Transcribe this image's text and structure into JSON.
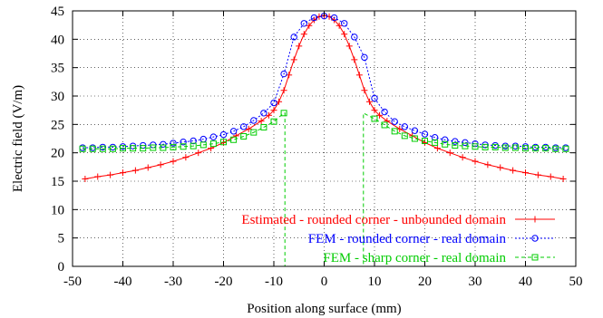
{
  "chart_data": {
    "type": "line",
    "title": "",
    "xlabel": "Position along surface (mm)",
    "ylabel": "Electric field (V/m)",
    "xlim": [
      -50,
      50
    ],
    "ylim": [
      0,
      45
    ],
    "xticks": [
      "-50",
      "-40",
      "-30",
      "-20",
      "-10",
      "0",
      "10",
      "20",
      "30",
      "40",
      "50"
    ],
    "yticks": [
      "0",
      "5",
      "10",
      "15",
      "20",
      "25",
      "30",
      "35",
      "40",
      "45"
    ],
    "grid": true,
    "legend_position": "bottom-right",
    "series": [
      {
        "name": "Estimated - rounded corner - unbounded domain",
        "color": "#ff0000",
        "marker": "plus",
        "dash": "solid",
        "x": [
          -47.5,
          -45,
          -42.5,
          -40,
          -37.5,
          -35,
          -32.5,
          -30,
          -27.5,
          -25,
          -22.5,
          -20,
          -17.5,
          -15,
          -12.5,
          -11,
          -10,
          -9,
          -8,
          -7,
          -6,
          -5,
          -4,
          -3,
          -2,
          -1,
          0,
          1,
          2,
          3,
          4,
          5,
          6,
          7,
          8,
          9,
          10,
          11,
          12.5,
          15,
          17.5,
          20,
          22.5,
          25,
          27.5,
          30,
          32.5,
          35,
          37.5,
          40,
          42.5,
          45,
          47.5
        ],
        "y": [
          15.4,
          15.8,
          16.1,
          16.5,
          16.9,
          17.4,
          17.9,
          18.5,
          19.2,
          20.0,
          20.8,
          21.8,
          23.0,
          24.2,
          25.6,
          26.6,
          27.5,
          29.0,
          31.0,
          33.7,
          36.4,
          38.8,
          40.9,
          42.4,
          43.4,
          44.0,
          44.2,
          44.0,
          43.4,
          42.4,
          40.9,
          38.8,
          36.4,
          33.7,
          31.0,
          29.0,
          27.5,
          26.6,
          25.6,
          24.2,
          23.0,
          21.8,
          20.8,
          20.0,
          19.2,
          18.5,
          17.9,
          17.4,
          16.9,
          16.5,
          16.1,
          15.8,
          15.4
        ]
      },
      {
        "name": "FEM - rounded corner - real domain",
        "color": "#0000ff",
        "marker": "circle",
        "dash": "dotted",
        "x": [
          -48,
          -46,
          -44,
          -42,
          -40,
          -38,
          -36,
          -34,
          -32,
          -30,
          -28,
          -26,
          -24,
          -22,
          -20,
          -18,
          -16,
          -14,
          -12,
          -10,
          -8,
          -6,
          -4,
          -2,
          0,
          2,
          4,
          6,
          8,
          10,
          12,
          14,
          16,
          18,
          20,
          22,
          24,
          26,
          28,
          30,
          32,
          34,
          36,
          38,
          40,
          42,
          44,
          46,
          48
        ],
        "y": [
          20.9,
          20.9,
          21.0,
          21.0,
          21.1,
          21.2,
          21.3,
          21.4,
          21.5,
          21.7,
          21.9,
          22.1,
          22.4,
          22.8,
          23.2,
          23.8,
          24.6,
          25.7,
          27.0,
          28.8,
          33.9,
          40.4,
          42.8,
          43.8,
          44.1,
          43.8,
          42.8,
          40.4,
          36.8,
          29.6,
          27.2,
          25.5,
          24.6,
          23.9,
          23.3,
          22.7,
          22.3,
          22.0,
          21.8,
          21.6,
          21.4,
          21.3,
          21.2,
          21.2,
          21.1,
          21.0,
          21.0,
          20.9,
          20.9
        ]
      },
      {
        "name": "FEM - sharp corner - real domain",
        "color": "#00cc00",
        "marker": "square",
        "dash": "dashed",
        "x": [
          -48,
          -46,
          -44,
          -42,
          -40,
          -38,
          -36,
          -34,
          -32,
          -30,
          -28,
          -26,
          -24,
          -22,
          -20,
          -18,
          -16,
          -14,
          -12,
          -10,
          -8,
          -7.8,
          -7.8,
          7.8,
          7.8,
          8,
          10,
          12,
          14,
          16,
          18,
          20,
          22,
          24,
          26,
          28,
          30,
          32,
          34,
          36,
          38,
          40,
          42,
          44,
          46,
          48
        ],
        "y": [
          20.7,
          20.7,
          20.7,
          20.7,
          20.8,
          20.8,
          20.8,
          20.9,
          20.9,
          21.0,
          21.1,
          21.2,
          21.4,
          21.6,
          21.9,
          22.3,
          22.9,
          23.6,
          24.5,
          25.5,
          27.0,
          27.0,
          0,
          0,
          27.0,
          26.9,
          26.0,
          24.9,
          23.8,
          23.0,
          22.5,
          22.1,
          21.8,
          21.5,
          21.3,
          21.2,
          21.1,
          21.0,
          21.0,
          20.9,
          20.9,
          20.8,
          20.8,
          20.8,
          20.7,
          20.7
        ],
        "marker_x": [
          -48,
          -46,
          -44,
          -42,
          -40,
          -38,
          -36,
          -34,
          -32,
          -30,
          -28,
          -26,
          -24,
          -22,
          -20,
          -18,
          -16,
          -14,
          -12,
          -10,
          -8,
          10,
          12,
          14,
          16,
          18,
          20,
          22,
          24,
          26,
          28,
          30,
          32,
          34,
          36,
          38,
          40,
          42,
          44,
          46,
          48
        ],
        "marker_y": [
          20.7,
          20.7,
          20.7,
          20.7,
          20.8,
          20.8,
          20.8,
          20.9,
          20.9,
          21.0,
          21.1,
          21.2,
          21.4,
          21.6,
          21.9,
          22.3,
          22.9,
          23.6,
          24.5,
          25.5,
          27.0,
          26.0,
          24.9,
          23.8,
          23.0,
          22.5,
          22.1,
          21.8,
          21.5,
          21.3,
          21.2,
          21.1,
          21.0,
          21.0,
          20.9,
          20.9,
          20.8,
          20.8,
          20.8,
          20.7,
          20.7
        ]
      }
    ]
  }
}
